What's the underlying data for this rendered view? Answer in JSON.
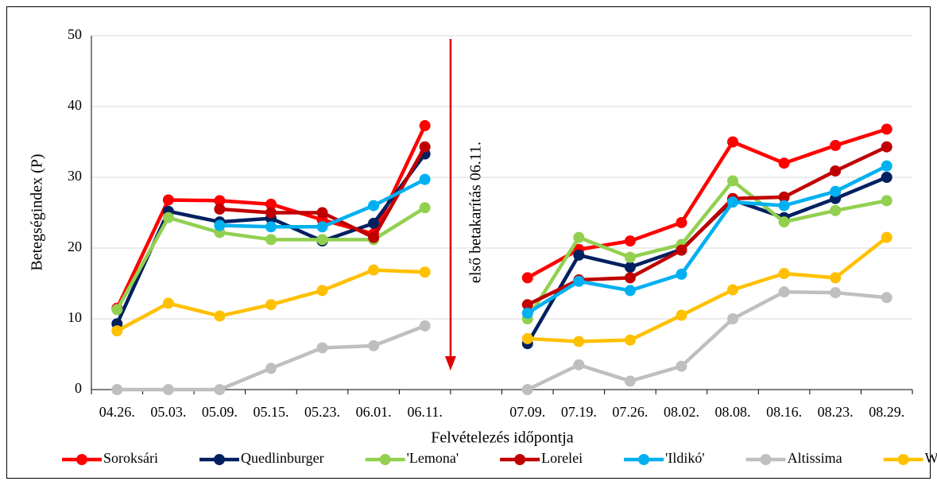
{
  "chart_data": {
    "type": "line",
    "y_label": "Betegségindex (P)",
    "x_label": "Felvételezés időpontja",
    "annotation": "első betakarítás 06.11.",
    "categories": [
      "04.26.",
      "05.03.",
      "05.09.",
      "05.15.",
      "05.23.",
      "06.01.",
      "06.11.",
      null,
      "07.09.",
      "07.19.",
      "07.26.",
      "08.02.",
      "08.08.",
      "08.16.",
      "08.23.",
      "08.29."
    ],
    "series": [
      {
        "name": "Soroksári",
        "color": "#ff0000",
        "values": [
          11.5,
          26.8,
          26.7,
          26.2,
          24,
          22,
          37.3,
          null,
          15.8,
          19.8,
          21,
          23.6,
          35,
          32,
          34.5,
          36.8
        ]
      },
      {
        "name": "Quedlinburger",
        "color": "#002060",
        "values": [
          9.3,
          25.2,
          23.7,
          24.2,
          21,
          23.5,
          33.3,
          null,
          6.5,
          19,
          17.3,
          19.8,
          26.8,
          24.3,
          27,
          30
        ]
      },
      {
        "name": "'Lemona'",
        "color": "#92d050",
        "values": [
          11.3,
          24.3,
          22.2,
          21.2,
          21.2,
          21.2,
          25.7,
          null,
          10,
          21.5,
          18.7,
          20.5,
          29.5,
          23.7,
          25.3,
          26.7
        ]
      },
      {
        "name": "Lorelei",
        "color": "#c00000",
        "values": [
          null,
          null,
          25.5,
          25,
          25,
          21.5,
          34.3,
          null,
          12,
          15.5,
          15.8,
          19.7,
          27,
          27.2,
          30.9,
          34.3
        ]
      },
      {
        "name": "'Ildikó'",
        "color": "#00b0f0",
        "values": [
          null,
          null,
          23.2,
          23,
          23,
          26,
          29.7,
          null,
          10.8,
          15.3,
          14,
          16.3,
          26.5,
          26,
          28,
          31.6
        ]
      },
      {
        "name": "Altissima",
        "color": "#bfbfbf",
        "values": [
          0,
          0,
          0,
          3,
          5.9,
          6.2,
          9,
          null,
          0,
          3.5,
          1.2,
          3.3,
          10,
          13.8,
          13.7,
          13
        ]
      },
      {
        "name": "Wrocław",
        "color": "#ffc000",
        "values": [
          8.3,
          12.2,
          10.4,
          12,
          14,
          16.9,
          16.6,
          null,
          7.2,
          6.8,
          7,
          10.5,
          14.1,
          16.4,
          15.8,
          21.5
        ]
      }
    ],
    "ylim": [
      0,
      50
    ],
    "yticks": [
      0,
      10,
      20,
      30,
      40,
      50
    ],
    "grid": true
  }
}
